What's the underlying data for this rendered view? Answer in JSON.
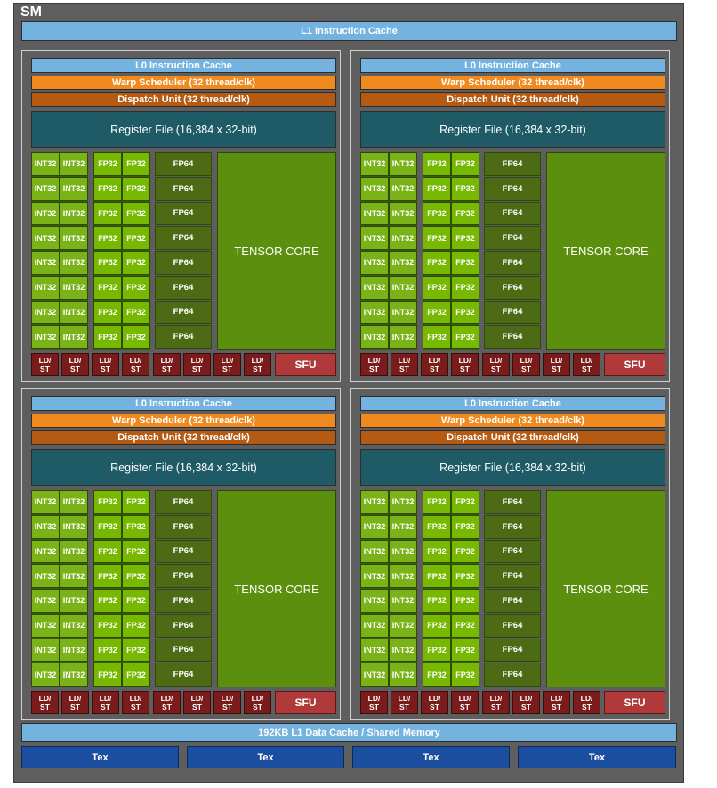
{
  "sm_label": "SM",
  "l1_instruction_cache": "L1 Instruction Cache",
  "partition": {
    "l0_cache": "L0 Instruction Cache",
    "warp_scheduler": "Warp Scheduler (32 thread/clk)",
    "dispatch_unit": "Dispatch Unit (32 thread/clk)",
    "register_file": "Register File (16,384 x 32-bit)",
    "int32": "INT32",
    "fp32": "FP32",
    "fp64": "FP64",
    "tensor_core": "TENSOR CORE",
    "ld_st_line1": "LD/",
    "ld_st_line2": "ST",
    "sfu": "SFU"
  },
  "l1_data_cache": "192KB L1 Data Cache / Shared Memory",
  "tex_units": [
    "Tex",
    "Tex",
    "Tex",
    "Tex"
  ],
  "colors": {
    "sm_background": "#5e5e5e",
    "cache": "#74b2df",
    "warp_scheduler": "#f08a1e",
    "dispatch_unit": "#b45a12",
    "register_file": "#1f5b66",
    "int32": "#7ab318",
    "fp32": "#76b900",
    "fp64": "#4c6b14",
    "tensor_core": "#5b8f0d",
    "ld_st": "#7a1c1c",
    "sfu": "#b03a3a",
    "tex": "#1c4ea0"
  }
}
